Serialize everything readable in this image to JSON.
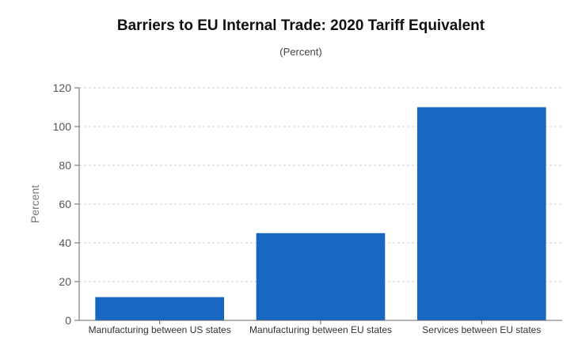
{
  "chart_data": {
    "type": "bar",
    "title": "Barriers to EU Internal Trade: 2020 Tariff Equivalent",
    "subtitle": "(Percent)",
    "xlabel": "",
    "ylabel": "Percent",
    "categories": [
      "Manufacturing between US states",
      "Manufacturing between EU states",
      "Services between EU states"
    ],
    "values": [
      12,
      45,
      110
    ],
    "ylim": [
      0,
      120
    ],
    "yticks": [
      0,
      20,
      40,
      60,
      80,
      100,
      120
    ],
    "grid": true,
    "bar_color": "#1766C2",
    "grid_color": "#cccccc"
  }
}
